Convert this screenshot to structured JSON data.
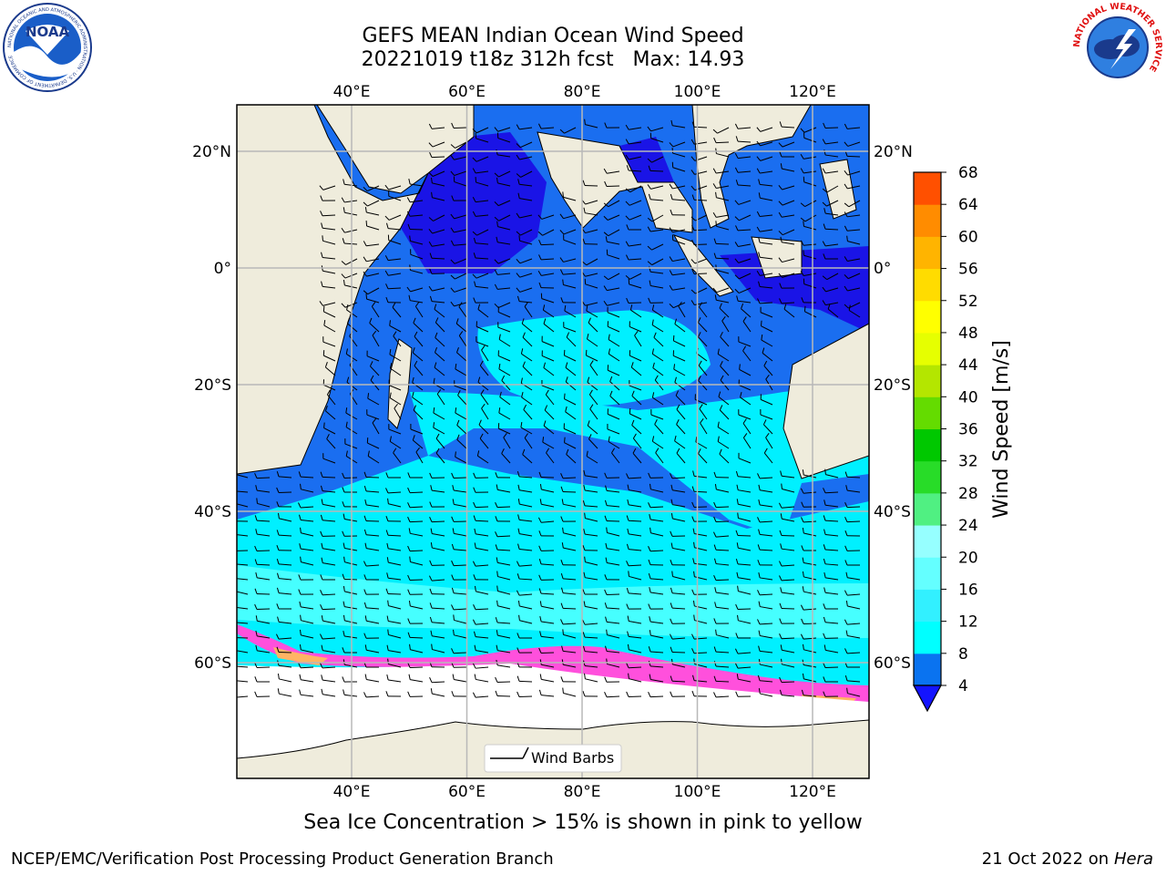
{
  "title": {
    "line1": "GEFS MEAN Indian Ocean Wind Speed",
    "line2": "20221019 t18z 312h fcst   Max: 14.93"
  },
  "caption": "Sea Ice Concentration > 15% is shown in pink to yellow",
  "footer": {
    "left": "NCEP/EMC/Verification Post Processing Product Generation Branch",
    "date": "21 Oct 2022 on ",
    "machine": "Hera"
  },
  "logos": {
    "noaa": {
      "text": "NOAA",
      "ring": "NATIONAL OCEANIC AND ATMOSPHERIC ADMINISTRATION · U.S. DEPARTMENT OF COMMERCE"
    },
    "nws": {
      "ring": "NATIONAL WEATHER SERVICE"
    }
  },
  "map": {
    "lon_ticks": [
      "40°E",
      "60°E",
      "80°E",
      "100°E",
      "120°E"
    ],
    "lat_ticks": [
      "20°N",
      "0°",
      "20°S",
      "40°S",
      "60°S"
    ],
    "legend_label": "Wind Barbs"
  },
  "colorbar": {
    "label": "Wind Speed [m/s]",
    "ticks": [
      "4",
      "8",
      "12",
      "16",
      "20",
      "24",
      "28",
      "32",
      "36",
      "40",
      "44",
      "48",
      "52",
      "56",
      "60",
      "64",
      "68"
    ],
    "colors": [
      "#0a73f0",
      "#00ffff",
      "#32f0ff",
      "#64ffff",
      "#96ffff",
      "#50f082",
      "#28dc28",
      "#00c800",
      "#64dc00",
      "#b4e600",
      "#e6ff00",
      "#ffff00",
      "#ffdc00",
      "#ffb400",
      "#ff8c00",
      "#ff5000",
      "#ff1e00",
      "#ff0000"
    ],
    "under_color": "#1414ff"
  },
  "colors": {
    "land": "#efecdc",
    "ocean_mid": "#1a6ef0",
    "ocean_dark": "#1a14e6",
    "ocean_cyan": "#00f0ff",
    "ocean_light": "#46ffff",
    "ice_pink": "#ff50dc",
    "ice_orange": "#ffb464",
    "antarctica": "#ffffff"
  }
}
